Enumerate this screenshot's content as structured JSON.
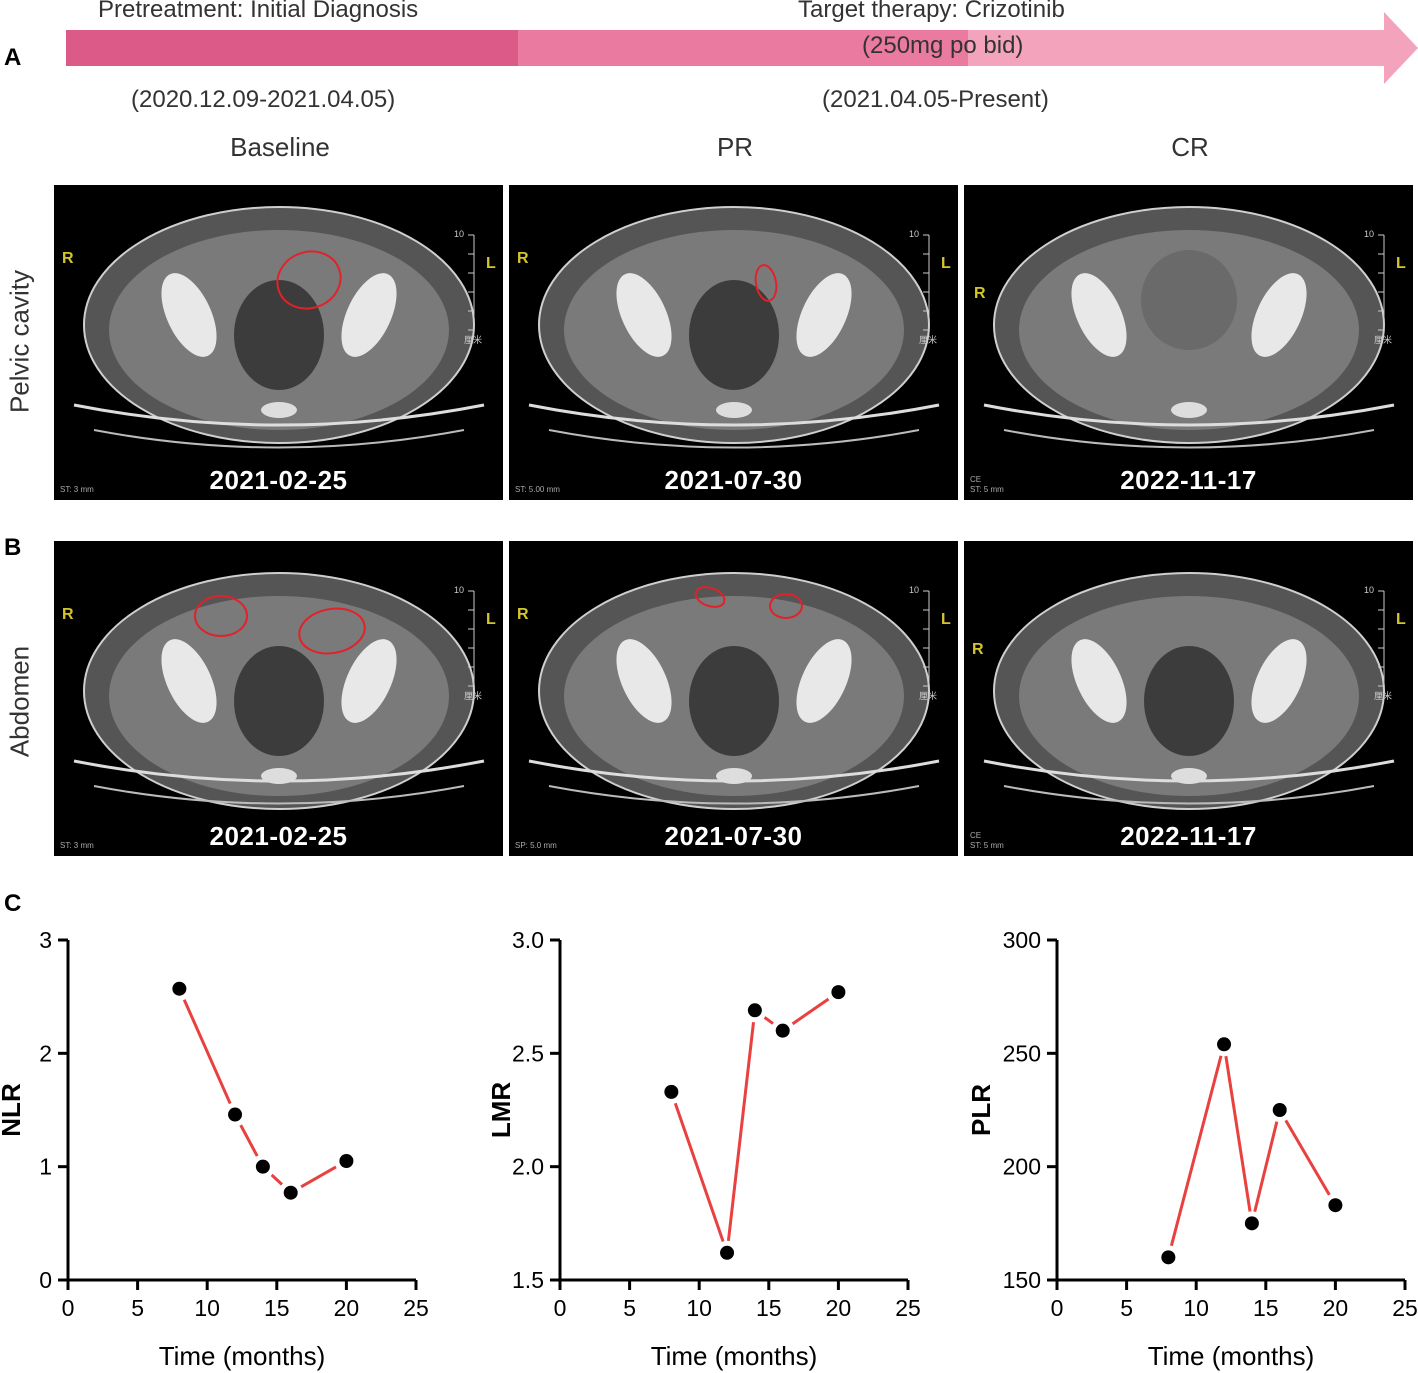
{
  "panel_letters": {
    "a": "A",
    "b": "B",
    "c": "C"
  },
  "timeline": {
    "pre_label": "Pretreatment: Initial Diagnosis",
    "pre_dates": "(2020.12.09-2021.04.05)",
    "target_label": "Target therapy: Crizotinib",
    "dose": "(250mg po bid)",
    "target_dates": "(2021.04.05-Present)",
    "colors": {
      "pre": "#dc5a87",
      "mid": "#eb7aa0",
      "end": "#f3a4bc"
    }
  },
  "columns": [
    "Baseline",
    "PR",
    "CR"
  ],
  "rows": [
    "Pelvic cavity",
    "Abdomen"
  ],
  "scans": [
    {
      "row": 0,
      "col": 0,
      "date": "2021-02-25",
      "st": "ST: 3 mm",
      "ce": "",
      "r": "R",
      "l": "L",
      "scale_top": "10",
      "scale_unit": "厘米"
    },
    {
      "row": 0,
      "col": 1,
      "date": "2021-07-30",
      "st": "ST: 5.00 mm",
      "ce": "",
      "r": "R",
      "l": "L",
      "scale_top": "10",
      "scale_unit": "厘米"
    },
    {
      "row": 0,
      "col": 2,
      "date": "2022-11-17",
      "st": "ST: 5 mm",
      "ce": "CE",
      "r": "R",
      "l": "L",
      "scale_top": "10",
      "scale_unit": "厘米"
    },
    {
      "row": 1,
      "col": 0,
      "date": "2021-02-25",
      "st": "ST: 3 mm",
      "ce": "",
      "r": "R",
      "l": "L",
      "scale_top": "10",
      "scale_unit": "厘米"
    },
    {
      "row": 1,
      "col": 1,
      "date": "2021-07-30",
      "st": "SP: 5.0 mm",
      "ce": "",
      "r": "R",
      "l": "L",
      "scale_top": "10",
      "scale_unit": "厘米"
    },
    {
      "row": 1,
      "col": 2,
      "date": "2022-11-17",
      "st": "ST: 5 mm",
      "ce": "CE",
      "r": "R",
      "l": "L",
      "scale_top": "10",
      "scale_unit": "厘米"
    }
  ],
  "chart_data": [
    {
      "type": "line",
      "title": "",
      "xlabel": "Time (months)",
      "ylabel": "NLR",
      "x": [
        8,
        12,
        14,
        16,
        20
      ],
      "y": [
        2.57,
        1.46,
        1.0,
        0.77,
        1.05
      ],
      "xlim": [
        0,
        25
      ],
      "ylim": [
        0,
        3
      ],
      "xticks": [
        0,
        5,
        10,
        15,
        20,
        25
      ],
      "yticks": [
        0,
        1,
        2,
        3
      ],
      "ytick_labels": [
        "0",
        "1",
        "2",
        "3"
      ],
      "line_color": "#e8413f",
      "point_color": "#000000"
    },
    {
      "type": "line",
      "title": "",
      "xlabel": "Time (months)",
      "ylabel": "LMR",
      "x": [
        8,
        12,
        14,
        16,
        20
      ],
      "y": [
        2.33,
        1.62,
        2.69,
        2.6,
        2.77
      ],
      "xlim": [
        0,
        25
      ],
      "ylim": [
        1.5,
        3.0
      ],
      "xticks": [
        0,
        5,
        10,
        15,
        20,
        25
      ],
      "yticks": [
        1.5,
        2.0,
        2.5,
        3.0
      ],
      "ytick_labels": [
        "1.5",
        "2.0",
        "2.5",
        "3.0"
      ],
      "line_color": "#e8413f",
      "point_color": "#000000"
    },
    {
      "type": "line",
      "title": "",
      "xlabel": "Time (months)",
      "ylabel": "PLR",
      "x": [
        8,
        12,
        14,
        16,
        20
      ],
      "y": [
        160,
        254,
        175,
        225,
        183
      ],
      "xlim": [
        0,
        25
      ],
      "ylim": [
        150,
        300
      ],
      "xticks": [
        0,
        5,
        10,
        15,
        20,
        25
      ],
      "yticks": [
        150,
        200,
        250,
        300
      ],
      "ytick_labels": [
        "150",
        "200",
        "250",
        "300"
      ],
      "line_color": "#e8413f",
      "point_color": "#000000"
    }
  ]
}
